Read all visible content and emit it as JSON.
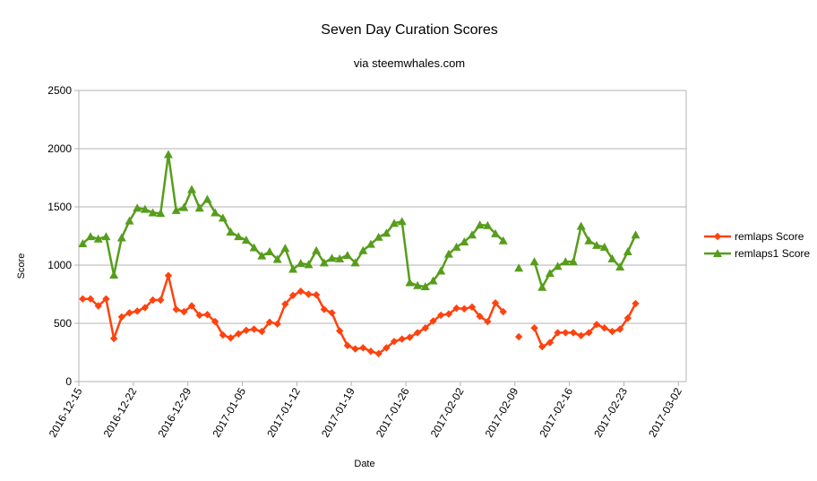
{
  "chart_data": {
    "type": "line",
    "title": "Seven Day Curation Scores",
    "subtitle": "via steemwhales.com",
    "xlabel": "Date",
    "ylabel": "Score",
    "ylim": [
      0,
      2500
    ],
    "yticks": [
      0,
      500,
      1000,
      1500,
      2000,
      2500
    ],
    "xticks": [
      "2016-12-15",
      "2016-12-22",
      "2016-12-29",
      "2017-01-05",
      "2017-01-12",
      "2017-01-19",
      "2017-01-26",
      "2017-02-02",
      "2017-02-09",
      "2017-02-16",
      "2017-02-23",
      "2017-03-02"
    ],
    "grid": "horizontal",
    "legend": "right",
    "x_start": "2016-12-15",
    "series": [
      {
        "name": "remlaps Score",
        "color": "#ff420e",
        "marker": "diamond",
        "values": [
          710,
          710,
          650,
          710,
          370,
          555,
          590,
          605,
          635,
          700,
          700,
          910,
          620,
          600,
          650,
          570,
          575,
          515,
          400,
          375,
          410,
          440,
          450,
          430,
          510,
          495,
          665,
          740,
          775,
          750,
          745,
          620,
          590,
          435,
          310,
          280,
          290,
          260,
          240,
          290,
          345,
          365,
          380,
          420,
          460,
          520,
          570,
          580,
          630,
          625,
          640,
          560,
          515,
          675,
          600,
          null,
          385,
          null,
          460,
          300,
          335,
          420,
          420,
          420,
          395,
          420,
          490,
          460,
          430,
          450,
          545,
          670
        ]
      },
      {
        "name": "remlaps1 Score",
        "color": "#579d1c",
        "marker": "triangle",
        "values": [
          1185,
          1245,
          1225,
          1245,
          915,
          1235,
          1380,
          1490,
          1480,
          1450,
          1445,
          1950,
          1470,
          1495,
          1650,
          1490,
          1565,
          1450,
          1405,
          1285,
          1245,
          1215,
          1150,
          1080,
          1115,
          1050,
          1145,
          965,
          1015,
          1005,
          1125,
          1020,
          1060,
          1055,
          1085,
          1020,
          1125,
          1180,
          1240,
          1275,
          1360,
          1375,
          850,
          825,
          815,
          865,
          950,
          1095,
          1155,
          1200,
          1260,
          1345,
          1340,
          1270,
          1210,
          null,
          975,
          null,
          1030,
          810,
          930,
          990,
          1030,
          1030,
          1335,
          1210,
          1170,
          1155,
          1055,
          985,
          1115,
          1260
        ]
      }
    ]
  }
}
